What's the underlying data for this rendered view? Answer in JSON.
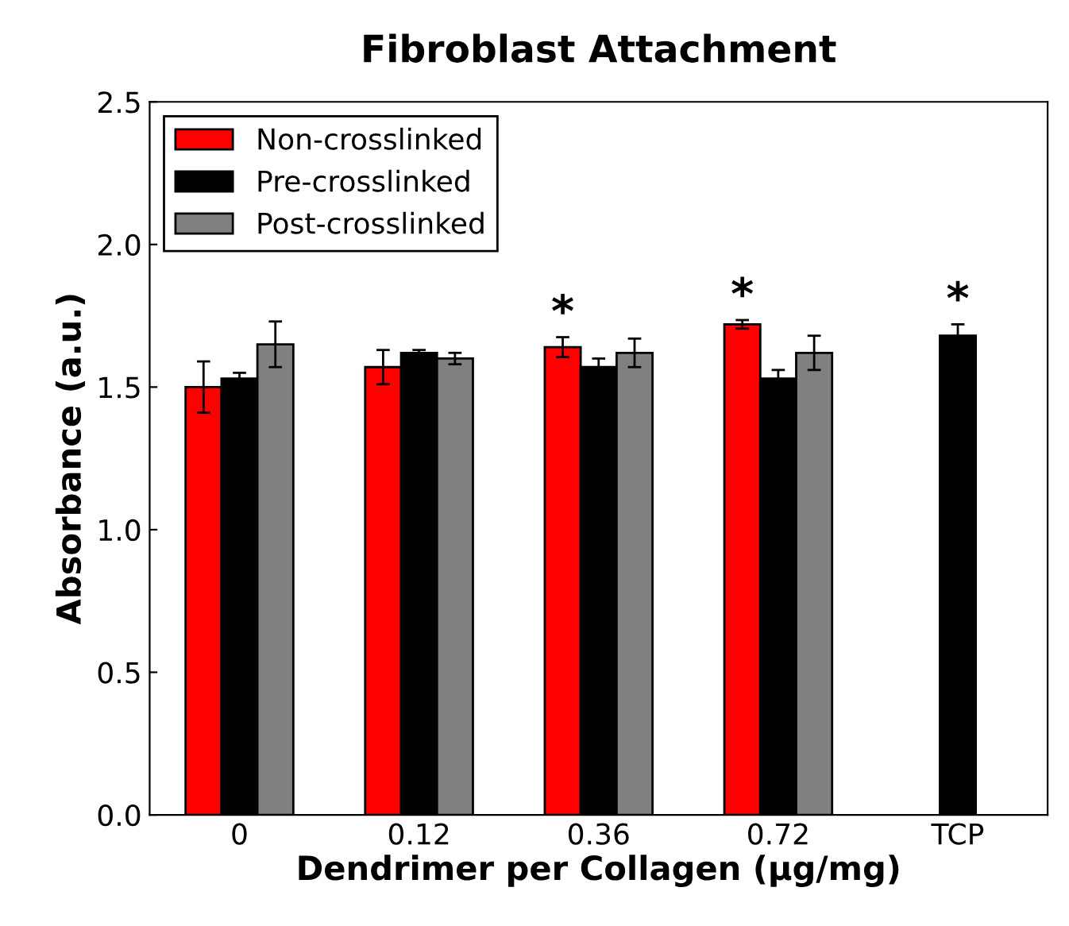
{
  "chart_data": {
    "type": "bar",
    "title": "Fibroblast Attachment",
    "xlabel": "Dendrimer per Collagen (µg/mg)",
    "ylabel": "Absorbance (a.u.)",
    "categories": [
      "0",
      "0.12",
      "0.36",
      "0.72",
      "TCP"
    ],
    "series": [
      {
        "name": "Non-crosslinked",
        "color": "#ff0000",
        "values": [
          1.5,
          1.57,
          1.64,
          1.72,
          null
        ],
        "errors": [
          0.09,
          0.06,
          0.035,
          0.015,
          null
        ],
        "value_labels": [
          null,
          null,
          "*",
          "*",
          null
        ]
      },
      {
        "name": "Pre-crosslinked",
        "color": "#000000",
        "values": [
          1.53,
          1.62,
          1.57,
          1.53,
          1.68
        ],
        "errors": [
          0.02,
          0.01,
          0.03,
          0.03,
          0.04
        ],
        "value_labels": [
          null,
          null,
          null,
          null,
          "*"
        ]
      },
      {
        "name": "Post-crosslinked",
        "color": "#808080",
        "values": [
          1.65,
          1.6,
          1.62,
          1.62,
          null
        ],
        "errors": [
          0.08,
          0.02,
          0.05,
          0.06,
          null
        ]
      }
    ],
    "ylim": [
      0,
      2.5
    ],
    "yticks": [
      {
        "value": 0,
        "label": "0.0"
      },
      {
        "value": 0.5,
        "label": "0.5"
      },
      {
        "value": 1.0,
        "label": "1.0"
      },
      {
        "value": 1.5,
        "label": "1.5"
      },
      {
        "value": 2.0,
        "label": "2.0"
      },
      {
        "value": 2.5,
        "label": "2.5"
      }
    ],
    "legend": "top left",
    "grid": false
  }
}
